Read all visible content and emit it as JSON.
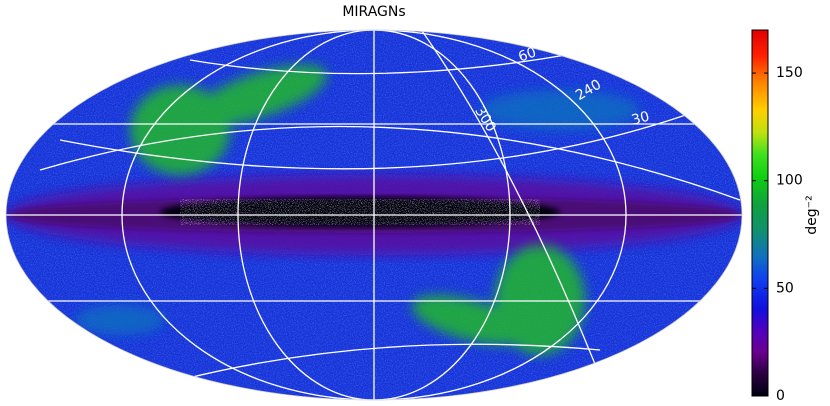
{
  "title": "MIRAGNs",
  "graticule_labels": [
    "60",
    "240",
    "300",
    "30"
  ],
  "colorbar": {
    "label": "deg⁻²",
    "lim": [
      0,
      170
    ],
    "ticks": [
      0,
      50,
      100,
      150
    ]
  }
}
